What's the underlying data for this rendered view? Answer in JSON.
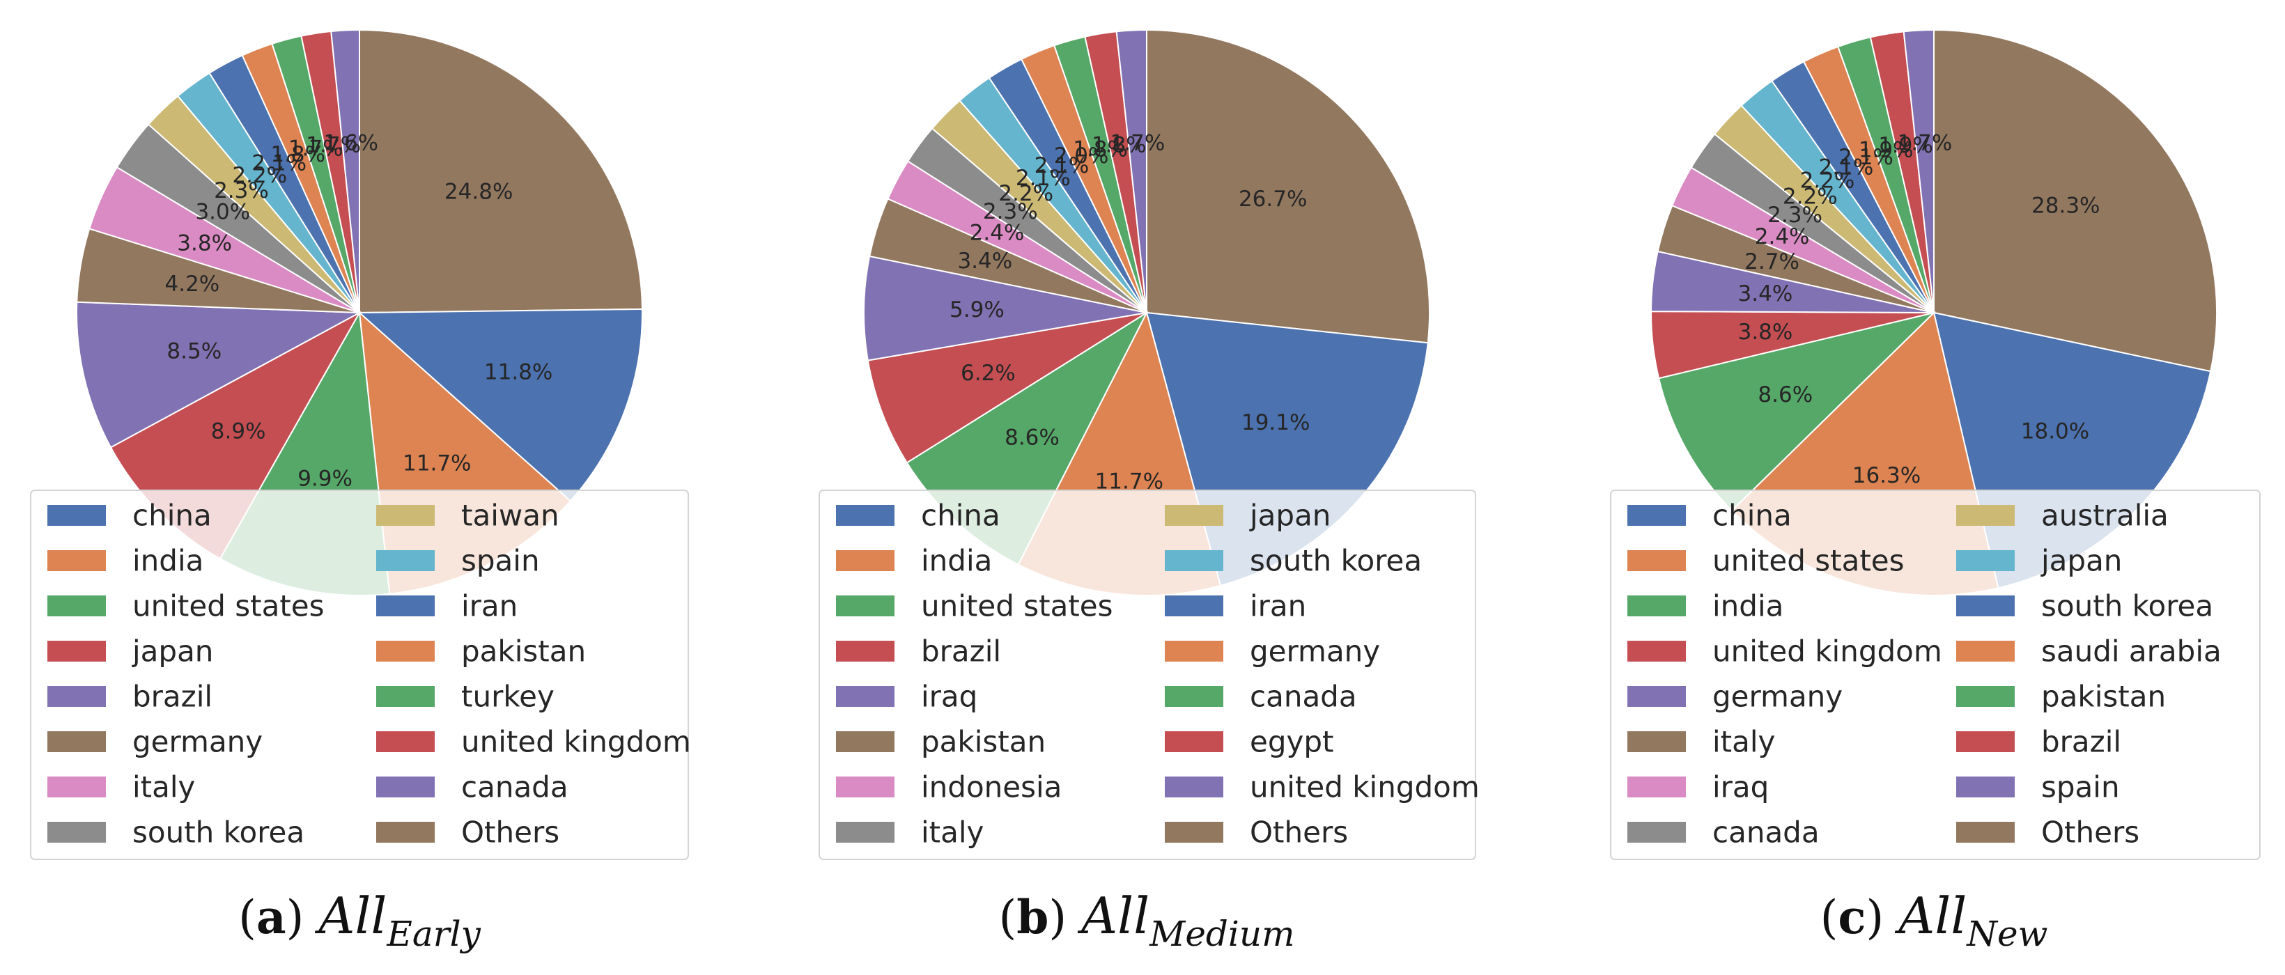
{
  "colors": {
    "blue": "#4C72B0",
    "orange": "#DD8452",
    "green": "#55A868",
    "red": "#C44E52",
    "purple": "#8172B3",
    "brown": "#937860",
    "pink": "#DA8BC3",
    "gray": "#8C8C8C",
    "olive": "#CCB974",
    "cyan": "#64B5CD"
  },
  "chart_data": [
    {
      "type": "pie",
      "caption": {
        "letter": "a",
        "main": "All",
        "sub": "Early"
      },
      "start": "12 o'clock, clockwise",
      "labels": [
        "Others",
        "china",
        "india",
        "united states",
        "japan",
        "brazil",
        "germany",
        "italy",
        "south korea",
        "taiwan",
        "spain",
        "iran",
        "pakistan",
        "turkey",
        "united kingdom",
        "canada"
      ],
      "values": [
        24.8,
        11.8,
        11.7,
        9.9,
        8.9,
        8.5,
        4.2,
        3.8,
        3.0,
        2.3,
        2.2,
        2.1,
        1.8,
        1.7,
        1.7,
        1.6
      ],
      "value_labels": [
        "24.8%",
        "11.8%",
        "11.7%",
        "9.9%",
        "8.9%",
        "8.5%",
        "4.2%",
        "3.8%",
        "3.0%",
        "2.3%",
        "2.2%",
        "2.1%",
        "1.8%",
        "1.7%",
        "1.7%",
        "1.6%"
      ],
      "colors": [
        "#937860",
        "#4C72B0",
        "#DD8452",
        "#55A868",
        "#C44E52",
        "#8172B3",
        "#937860",
        "#DA8BC3",
        "#8C8C8C",
        "#CCB974",
        "#64B5CD",
        "#4C72B0",
        "#DD8452",
        "#55A868",
        "#C44E52",
        "#8172B3"
      ],
      "legend": {
        "placement": "lower center, 2 columns",
        "entries": [
          "china",
          "india",
          "united states",
          "japan",
          "brazil",
          "germany",
          "italy",
          "south korea",
          "taiwan",
          "spain",
          "iran",
          "pakistan",
          "turkey",
          "united kingdom",
          "canada",
          "Others"
        ]
      }
    },
    {
      "type": "pie",
      "caption": {
        "letter": "b",
        "main": "All",
        "sub": "Medium"
      },
      "start": "12 o'clock, clockwise",
      "labels": [
        "Others",
        "china",
        "india",
        "united states",
        "brazil",
        "iraq",
        "pakistan",
        "indonesia",
        "italy",
        "japan",
        "south korea",
        "iran",
        "germany",
        "canada",
        "egypt",
        "united kingdom"
      ],
      "values": [
        26.7,
        19.1,
        11.7,
        8.6,
        6.2,
        5.9,
        3.4,
        2.4,
        2.3,
        2.2,
        2.1,
        2.1,
        2.0,
        1.8,
        1.8,
        1.7
      ],
      "value_labels": [
        "26.7%",
        "19.1%",
        "11.7%",
        "8.6%",
        "6.2%",
        "5.9%",
        "3.4%",
        "2.4%",
        "2.3%",
        "2.2%",
        "2.1%",
        "2.1%",
        "2.0%",
        "1.8%",
        "1.8%",
        "1.7%"
      ],
      "colors": [
        "#937860",
        "#4C72B0",
        "#DD8452",
        "#55A868",
        "#C44E52",
        "#8172B3",
        "#937860",
        "#DA8BC3",
        "#8C8C8C",
        "#CCB974",
        "#64B5CD",
        "#4C72B0",
        "#DD8452",
        "#55A868",
        "#C44E52",
        "#8172B3"
      ],
      "legend": {
        "placement": "lower center, 2 columns",
        "entries": [
          "china",
          "india",
          "united states",
          "brazil",
          "iraq",
          "pakistan",
          "indonesia",
          "italy",
          "japan",
          "south korea",
          "iran",
          "germany",
          "canada",
          "egypt",
          "united kingdom",
          "Others"
        ]
      }
    },
    {
      "type": "pie",
      "caption": {
        "letter": "c",
        "main": "All",
        "sub": "New"
      },
      "start": "12 o'clock, clockwise",
      "labels": [
        "Others",
        "china",
        "united states",
        "india",
        "united kingdom",
        "germany",
        "italy",
        "iraq",
        "canada",
        "australia",
        "japan",
        "south korea",
        "saudi arabia",
        "pakistan",
        "brazil",
        "spain"
      ],
      "values": [
        28.3,
        18.0,
        16.3,
        8.6,
        3.8,
        3.4,
        2.7,
        2.4,
        2.3,
        2.2,
        2.2,
        2.1,
        2.1,
        1.9,
        1.9,
        1.7
      ],
      "value_labels": [
        "28.3%",
        "18.0%",
        "16.3%",
        "8.6%",
        "3.8%",
        "3.4%",
        "2.7%",
        "2.4%",
        "2.3%",
        "2.2%",
        "2.2%",
        "2.1%",
        "2.1%",
        "1.9%",
        "1.9%",
        "1.7%"
      ],
      "colors": [
        "#937860",
        "#4C72B0",
        "#DD8452",
        "#55A868",
        "#C44E52",
        "#8172B3",
        "#937860",
        "#DA8BC3",
        "#8C8C8C",
        "#CCB974",
        "#64B5CD",
        "#4C72B0",
        "#DD8452",
        "#55A868",
        "#C44E52",
        "#8172B3"
      ],
      "legend": {
        "placement": "lower center, 2 columns",
        "entries": [
          "china",
          "united states",
          "india",
          "united kingdom",
          "germany",
          "italy",
          "iraq",
          "canada",
          "australia",
          "japan",
          "south korea",
          "saudi arabia",
          "pakistan",
          "brazil",
          "spain",
          "Others"
        ]
      }
    }
  ]
}
